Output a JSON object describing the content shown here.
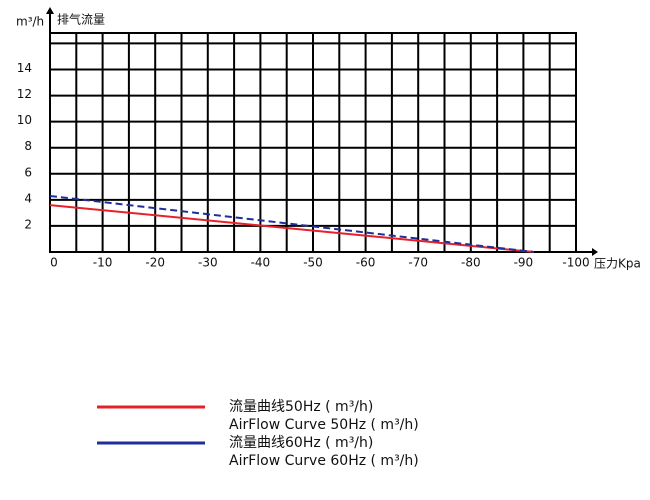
{
  "chart_data": {
    "type": "line",
    "y_label": "m³/h",
    "y_title": "排气流量",
    "x_label": "压力Kpa",
    "xlim": [
      0,
      -100
    ],
    "xticks": [
      0,
      -10,
      -20,
      -30,
      -40,
      -50,
      -60,
      -70,
      -80,
      -90,
      -100
    ],
    "ylim": [
      0,
      16.8
    ],
    "yticks": [
      2,
      4,
      6,
      8,
      10,
      12,
      14
    ],
    "grid": true,
    "series": [
      {
        "name": "流量曲线50Hz ( m³/h)",
        "name_en": "AirFlow Curve 50Hz ( m³/h)",
        "color": "#e8202a",
        "dashed": false,
        "x": [
          0,
          -92
        ],
        "values": [
          3.6,
          0
        ]
      },
      {
        "name": "流量曲线60Hz ( m³/h)",
        "name_en": "AirFlow Curve 60Hz ( m³/h)",
        "color": "#1f2f9a",
        "dashed": true,
        "x": [
          0,
          -92
        ],
        "values": [
          4.3,
          0
        ]
      }
    ]
  }
}
